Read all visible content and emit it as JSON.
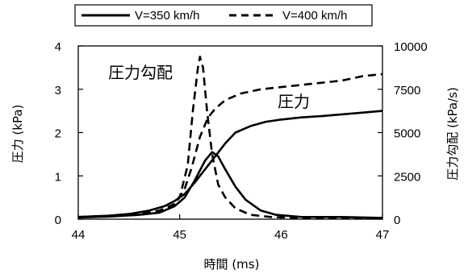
{
  "chart_data": {
    "type": "line",
    "xlabel": "時間 (ms)",
    "ylabel_left": "圧力 (kPa)",
    "ylabel_right": "圧力勾配 (kPa/s)",
    "xlim": [
      44,
      47
    ],
    "ylim_left": [
      0,
      4
    ],
    "ylim_right": [
      0,
      10000
    ],
    "x_ticks": [
      "44",
      "45",
      "46",
      "47"
    ],
    "y_ticks_left": [
      "0",
      "1",
      "2",
      "3",
      "4"
    ],
    "y_ticks_right": [
      "0",
      "2500",
      "5000",
      "7500",
      "10000"
    ],
    "legend_position": "top",
    "annotations": [
      {
        "text": "圧力勾配",
        "x": 44.95,
        "y": 3.4,
        "axis": "left"
      },
      {
        "text": "圧力",
        "x": 45.95,
        "y": 2.75,
        "axis": "left"
      }
    ],
    "series": [
      {
        "name": "V=350 km/h",
        "style": "solid",
        "axis": "left",
        "kind": "pressure",
        "x": [
          44.0,
          44.3,
          44.5,
          44.7,
          44.85,
          44.95,
          45.05,
          45.15,
          45.25,
          45.35,
          45.45,
          45.55,
          45.7,
          45.85,
          46.0,
          46.2,
          46.4,
          46.6,
          46.8,
          47.0
        ],
        "y": [
          0.05,
          0.08,
          0.12,
          0.2,
          0.3,
          0.42,
          0.58,
          0.85,
          1.15,
          1.45,
          1.75,
          2.0,
          2.15,
          2.25,
          2.3,
          2.35,
          2.38,
          2.42,
          2.46,
          2.5
        ]
      },
      {
        "name": "V=400 km/h",
        "style": "dashed",
        "axis": "left",
        "kind": "pressure",
        "x": [
          44.0,
          44.3,
          44.6,
          44.8,
          44.95,
          45.05,
          45.12,
          45.2,
          45.28,
          45.35,
          45.45,
          45.6,
          45.8,
          46.0,
          46.2,
          46.4,
          46.6,
          46.8,
          47.0
        ],
        "y": [
          0.05,
          0.08,
          0.13,
          0.2,
          0.35,
          0.7,
          1.2,
          1.9,
          2.35,
          2.55,
          2.75,
          2.9,
          3.0,
          3.05,
          3.1,
          3.15,
          3.2,
          3.3,
          3.35
        ]
      },
      {
        "name": "V=350 km/h",
        "style": "solid",
        "axis": "right",
        "kind": "gradient",
        "x": [
          44.0,
          44.3,
          44.6,
          44.8,
          44.95,
          45.05,
          45.15,
          45.25,
          45.32,
          45.38,
          45.45,
          45.55,
          45.65,
          45.8,
          45.95,
          46.2,
          46.6,
          47.0
        ],
        "y": [
          100,
          150,
          250,
          375,
          750,
          1250,
          2250,
          3375,
          3875,
          3625,
          2875,
          1875,
          1125,
          500,
          250,
          125,
          125,
          75
        ]
      },
      {
        "name": "V=400 km/h",
        "style": "dashed",
        "axis": "right",
        "kind": "gradient",
        "x": [
          44.0,
          44.3,
          44.6,
          44.8,
          44.9,
          45.0,
          45.08,
          45.13,
          45.18,
          45.2,
          45.23,
          45.27,
          45.32,
          45.38,
          45.45,
          45.55,
          45.7,
          45.9,
          46.2,
          47.0
        ],
        "y": [
          100,
          175,
          250,
          400,
          625,
          1250,
          3125,
          6250,
          8750,
          9375,
          8750,
          6250,
          3750,
          2000,
          1250,
          625,
          250,
          125,
          75,
          75
        ]
      }
    ]
  }
}
